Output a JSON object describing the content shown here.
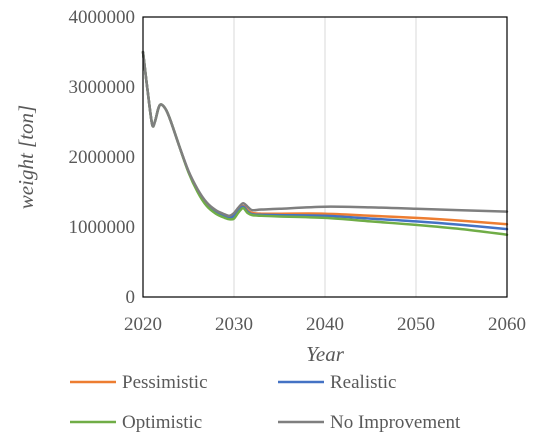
{
  "chart_data": {
    "type": "line",
    "title": "",
    "xlabel": "Year",
    "ylabel": "weight [ton]",
    "xlim": [
      2020,
      2060
    ],
    "ylim": [
      0,
      4000000
    ],
    "x_ticks": [
      2020,
      2030,
      2040,
      2050,
      2060
    ],
    "y_ticks": [
      0,
      1000000,
      2000000,
      3000000,
      4000000
    ],
    "x_tick_labels": [
      "2020",
      "2030",
      "2040",
      "2050",
      "2060"
    ],
    "y_tick_labels": [
      "0",
      "1000000",
      "2000000",
      "3000000",
      "4000000"
    ],
    "grid": "vertical gridlines",
    "legend_position": "bottom",
    "series": [
      {
        "name": "Pessimistic",
        "color": "#ED7D31",
        "points": [
          [
            2020,
            3500000
          ],
          [
            2020.5,
            2950000
          ],
          [
            2021,
            2470000
          ],
          [
            2021.3,
            2500000
          ],
          [
            2021.7,
            2700000
          ],
          [
            2022,
            2750000
          ],
          [
            2022.5,
            2680000
          ],
          [
            2023,
            2530000
          ],
          [
            2024,
            2150000
          ],
          [
            2025,
            1790000
          ],
          [
            2026,
            1520000
          ],
          [
            2027,
            1330000
          ],
          [
            2028,
            1220000
          ],
          [
            2029,
            1170000
          ],
          [
            2029.5,
            1150000
          ],
          [
            2030,
            1180000
          ],
          [
            2030.5,
            1250000
          ],
          [
            2031,
            1300000
          ],
          [
            2031.5,
            1240000
          ],
          [
            2032,
            1200000
          ],
          [
            2033,
            1190000
          ],
          [
            2035,
            1190000
          ],
          [
            2040,
            1190000
          ],
          [
            2045,
            1160000
          ],
          [
            2050,
            1130000
          ],
          [
            2055,
            1090000
          ],
          [
            2060,
            1040000
          ]
        ]
      },
      {
        "name": "Realistic",
        "color": "#4472C4",
        "points": [
          [
            2020,
            3500000
          ],
          [
            2020.5,
            2950000
          ],
          [
            2021,
            2470000
          ],
          [
            2021.3,
            2500000
          ],
          [
            2021.7,
            2700000
          ],
          [
            2022,
            2750000
          ],
          [
            2022.5,
            2680000
          ],
          [
            2023,
            2530000
          ],
          [
            2024,
            2150000
          ],
          [
            2025,
            1790000
          ],
          [
            2026,
            1520000
          ],
          [
            2027,
            1320000
          ],
          [
            2028,
            1210000
          ],
          [
            2029,
            1150000
          ],
          [
            2029.5,
            1130000
          ],
          [
            2030,
            1160000
          ],
          [
            2030.5,
            1240000
          ],
          [
            2031,
            1290000
          ],
          [
            2031.5,
            1220000
          ],
          [
            2032,
            1180000
          ],
          [
            2033,
            1175000
          ],
          [
            2035,
            1170000
          ],
          [
            2040,
            1160000
          ],
          [
            2045,
            1120000
          ],
          [
            2050,
            1080000
          ],
          [
            2055,
            1030000
          ],
          [
            2060,
            970000
          ]
        ]
      },
      {
        "name": "Optimistic",
        "color": "#70AD47",
        "points": [
          [
            2020,
            3500000
          ],
          [
            2020.5,
            2950000
          ],
          [
            2021,
            2470000
          ],
          [
            2021.3,
            2500000
          ],
          [
            2021.7,
            2700000
          ],
          [
            2022,
            2750000
          ],
          [
            2022.5,
            2680000
          ],
          [
            2023,
            2530000
          ],
          [
            2024,
            2150000
          ],
          [
            2025,
            1780000
          ],
          [
            2026,
            1500000
          ],
          [
            2027,
            1300000
          ],
          [
            2028,
            1190000
          ],
          [
            2029,
            1130000
          ],
          [
            2029.5,
            1110000
          ],
          [
            2030,
            1120000
          ],
          [
            2030.5,
            1210000
          ],
          [
            2031,
            1270000
          ],
          [
            2031.5,
            1200000
          ],
          [
            2032,
            1170000
          ],
          [
            2033,
            1160000
          ],
          [
            2035,
            1150000
          ],
          [
            2040,
            1130000
          ],
          [
            2045,
            1080000
          ],
          [
            2050,
            1030000
          ],
          [
            2055,
            970000
          ],
          [
            2060,
            890000
          ]
        ]
      },
      {
        "name": "No Improvement",
        "color": "#7F7F7F",
        "points": [
          [
            2020,
            3500000
          ],
          [
            2020.5,
            2950000
          ],
          [
            2021,
            2470000
          ],
          [
            2021.3,
            2500000
          ],
          [
            2021.7,
            2700000
          ],
          [
            2022,
            2750000
          ],
          [
            2022.5,
            2680000
          ],
          [
            2023,
            2530000
          ],
          [
            2024,
            2150000
          ],
          [
            2025,
            1800000
          ],
          [
            2026,
            1540000
          ],
          [
            2027,
            1350000
          ],
          [
            2028,
            1240000
          ],
          [
            2029,
            1180000
          ],
          [
            2029.5,
            1160000
          ],
          [
            2030,
            1200000
          ],
          [
            2030.5,
            1280000
          ],
          [
            2031,
            1340000
          ],
          [
            2031.5,
            1290000
          ],
          [
            2032,
            1240000
          ],
          [
            2033,
            1250000
          ],
          [
            2035,
            1260000
          ],
          [
            2040,
            1290000
          ],
          [
            2045,
            1280000
          ],
          [
            2050,
            1260000
          ],
          [
            2055,
            1240000
          ],
          [
            2060,
            1220000
          ]
        ]
      }
    ]
  }
}
